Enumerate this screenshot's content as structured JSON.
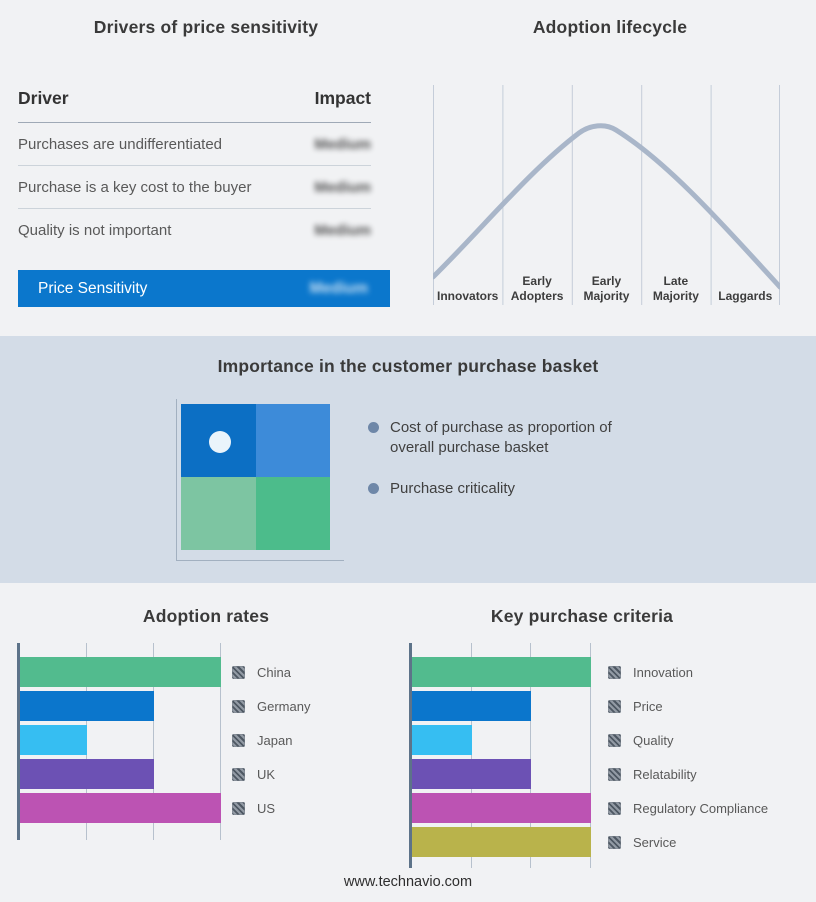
{
  "page": {
    "footer_url": "www.technavio.com",
    "background_color": "#f1f2f4",
    "band_background_color": "#d3dce7",
    "accent_blue": "#0b77cc"
  },
  "drivers_panel": {
    "title": "Drivers of price sensitivity",
    "header": {
      "driver": "Driver",
      "impact": "Impact"
    },
    "rows": [
      {
        "driver": "Purchases are undifferentiated",
        "impact": "Medium",
        "impact_blurred": true
      },
      {
        "driver": "Purchase is a key cost to the buyer",
        "impact": "Medium",
        "impact_blurred": true
      },
      {
        "driver": "Quality is not important",
        "impact": "Medium",
        "impact_blurred": true
      }
    ],
    "highlight_row": {
      "driver": "Price Sensitivity",
      "impact": "Medium",
      "impact_blurred": true,
      "background": "#0b77cc"
    }
  },
  "lifecycle_panel": {
    "title": "Adoption lifecycle",
    "stages": [
      "Innovators",
      "Early Adopters",
      "Early Majority",
      "Late Majority",
      "Laggards"
    ],
    "curve_color": "#a9b6c9",
    "gridline_color": "#c5cdd9"
  },
  "basket_panel": {
    "title": "Importance in the customer purchase basket",
    "bullets": [
      "Cost of purchase as proportion of overall purchase basket",
      "Purchase criticality"
    ],
    "bullet_dot_color": "#6e87a8",
    "quadrant_colors": {
      "top_left": "#0c6fc4",
      "top_right": "#3d8bd9",
      "bottom_left": "#7dc5a2",
      "bottom_right": "#4cbc8b"
    }
  },
  "chart_data": [
    {
      "type": "line",
      "title": "Adoption lifecycle",
      "x_categories": [
        "Innovators",
        "Early Adopters",
        "Early Majority",
        "Late Majority",
        "Laggards"
      ],
      "shape": "bell curve rising from Innovators, peaking within Early Majority, falling to Laggards",
      "points_pct_x_y": [
        [
          0,
          87
        ],
        [
          20,
          50
        ],
        [
          40,
          21
        ],
        [
          47,
          17
        ],
        [
          60,
          27
        ],
        [
          80,
          55
        ],
        [
          100,
          92
        ]
      ],
      "grid": "vertical category separators only",
      "legend_position": "none"
    },
    {
      "type": "bar",
      "title": "Adoption rates",
      "orientation": "horizontal",
      "categories": [
        "China",
        "Germany",
        "Japan",
        "UK",
        "US"
      ],
      "values": [
        3,
        2,
        1,
        2,
        3
      ],
      "xlim": [
        0,
        3
      ],
      "xlabel": "",
      "ylabel": "",
      "grid": "vertical gridlines at each third, no tick labels",
      "legend_position": "right",
      "legend_swatch_style": "gray-hatched",
      "bar_colors": [
        "#52bb8e",
        "#0b76cc",
        "#36bef2",
        "#6c51b4",
        "#bc53b3",
        "#b9b34b"
      ]
    },
    {
      "type": "bar",
      "title": "Key purchase criteria",
      "orientation": "horizontal",
      "categories": [
        "Innovation",
        "Price",
        "Quality",
        "Relatability",
        "Regulatory Compliance",
        "Service"
      ],
      "values": [
        3,
        2,
        1,
        2,
        3,
        3
      ],
      "xlim": [
        0,
        3
      ],
      "xlabel": "",
      "ylabel": "",
      "grid": "vertical gridlines at each third, no tick labels",
      "legend_position": "right",
      "legend_swatch_style": "gray-hatched",
      "bar_colors": [
        "#52bb8e",
        "#0b76cc",
        "#36bef2",
        "#6c51b4",
        "#bc53b3",
        "#b9b34b"
      ]
    }
  ]
}
